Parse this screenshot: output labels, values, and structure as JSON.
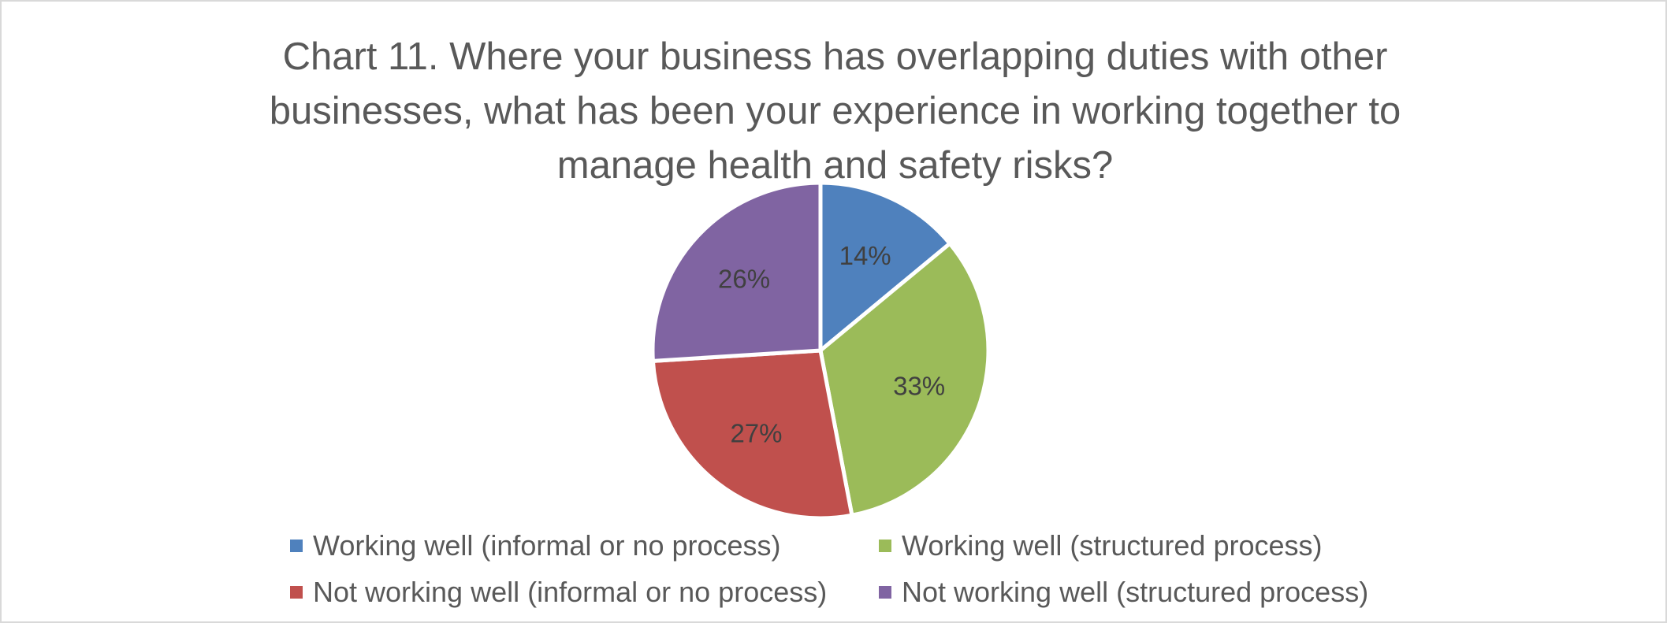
{
  "chart_data": {
    "type": "pie",
    "title": "Chart 11. Where your business has overlapping duties with other businesses, what has been your experience in working together to manage health and safety risks?",
    "slices": [
      {
        "label": "Working well (informal or no process)",
        "value": 14,
        "display": "14%",
        "color": "#4F81BD"
      },
      {
        "label": "Working well (structured process)",
        "value": 33,
        "display": "33%",
        "color": "#9BBB59"
      },
      {
        "label": "Not working well (informal or no process)",
        "value": 27,
        "display": "27%",
        "color": "#C0504D"
      },
      {
        "label": "Not working well (structured process)",
        "value": 26,
        "display": "26%",
        "color": "#8064A2"
      }
    ],
    "legend_position": "bottom",
    "start_angle": "12 o'clock",
    "direction": "clockwise"
  }
}
